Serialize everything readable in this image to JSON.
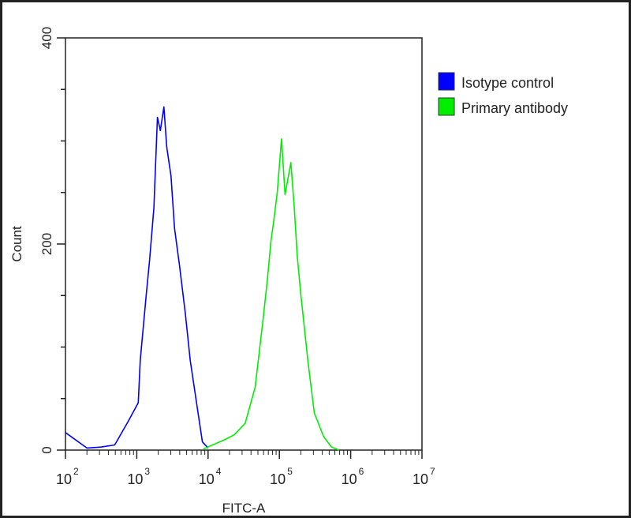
{
  "chart_data": {
    "type": "line",
    "title": "",
    "xlabel": "FITC-A",
    "ylabel": "Count",
    "x_scale": "log",
    "xlim": [
      100,
      10000000
    ],
    "ylim": [
      0,
      400
    ],
    "x_tick_exponents": [
      "2",
      "3",
      "4",
      "5",
      "6",
      "7"
    ],
    "y_ticks": [
      0,
      200,
      400
    ],
    "y_tick_labels": [
      "0",
      "200",
      "400"
    ],
    "grid": false,
    "legend_placement": "right",
    "series": [
      {
        "name": "Isotype control",
        "color": "#0000ff",
        "x": [
          100,
          200,
          320,
          490,
          760,
          1050,
          1120,
          1350,
          1510,
          1740,
          1950,
          2140,
          2400,
          2630,
          3020,
          3390,
          3980,
          4790,
          5620,
          7240,
          8320,
          10000
        ],
        "y": [
          17,
          2,
          3,
          5,
          28,
          46,
          87,
          149,
          184,
          235,
          323,
          310,
          333,
          294,
          266,
          215,
          179,
          133,
          87,
          36,
          8,
          2
        ]
      },
      {
        "name": "Primary antibody",
        "color": "#00ee00",
        "x": [
          8510,
          17000,
          23400,
          33100,
          45700,
          58900,
          67600,
          75900,
          83200,
          93300,
          107000,
          120000,
          145000,
          162000,
          178000,
          200000,
          251000,
          309000,
          417000,
          537000,
          692000
        ],
        "y": [
          1,
          10,
          15,
          26,
          61,
          126,
          164,
          202,
          222,
          250,
          302,
          248,
          279,
          235,
          189,
          151,
          87,
          36,
          13,
          3,
          0
        ]
      }
    ]
  }
}
